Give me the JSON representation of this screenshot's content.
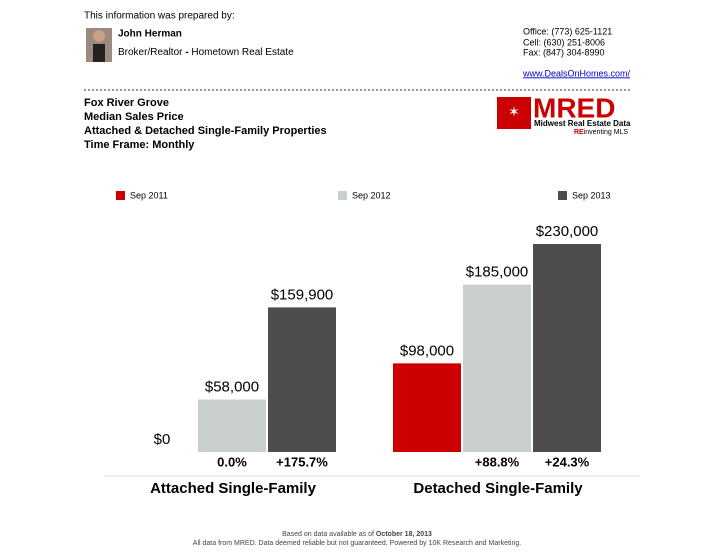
{
  "header": {
    "prepared_by": "This information was prepared by:",
    "agent_name": "John Herman",
    "agent_role": "Broker/Realtor",
    "agent_company": "Hometown Real Estate",
    "office": "Office: (773) 625-1121",
    "cell": "Cell: (630) 251-8006",
    "fax": "Fax: (847) 304-8990",
    "website": "www.DealsOnHomes.com/"
  },
  "report": {
    "area": "Fox River Grove",
    "metric": "Median Sales Price",
    "properties": "Attached & Detached Single-Family Properties",
    "time_frame": "Time Frame: Monthly"
  },
  "logo": {
    "name": "MRED",
    "tagline": "Midwest Real Estate Data",
    "slogan_re": "RE",
    "slogan_rest": "inventing MLS"
  },
  "chart_data": {
    "type": "bar",
    "categories": [
      "Attached Single-Family",
      "Detached Single-Family"
    ],
    "series": [
      {
        "name": "Sep 2011",
        "color": "#cc0000",
        "values": [
          0,
          98000
        ],
        "value_labels": [
          "$0",
          "$98,000"
        ]
      },
      {
        "name": "Sep 2012",
        "color": "#c9cfcd",
        "values": [
          58000,
          185000
        ],
        "value_labels": [
          "$58,000",
          "$185,000"
        ],
        "change_labels": [
          "0.0%",
          "+88.8%"
        ]
      },
      {
        "name": "Sep 2013",
        "color": "#4d4d4d",
        "values": [
          159900,
          230000
        ],
        "value_labels": [
          "$159,900",
          "$230,000"
        ],
        "change_labels": [
          "+175.7%",
          "+24.3%"
        ]
      }
    ]
  },
  "footer": {
    "based_on": "Based on data available as of",
    "date": "October 18, 2013",
    "disclaimer": "All data from MRED. Data deemed reliable but not guaranteed. Powered by 10K Research and Marketing."
  }
}
